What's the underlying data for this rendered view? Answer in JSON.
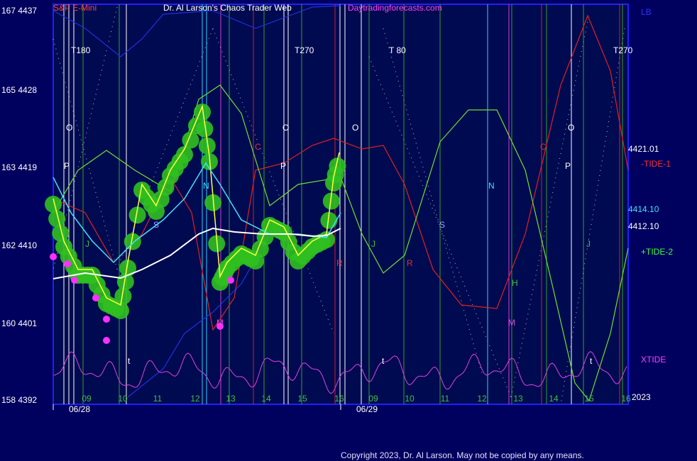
{
  "header": {
    "symbol": "S&P E-Mini",
    "title": "Dr. Al Larson's Chaos Trader Web",
    "site": "Daytradingforecasts.com",
    "corner": "LB"
  },
  "y_axis_labels": [
    "167 4437",
    "165 4428",
    "163 4419",
    "162 4410",
    "160 4401",
    "158 4392"
  ],
  "right_labels": [
    "4421.01",
    "-TIDE-1",
    "4414.10",
    "4412.10",
    "+TIDE-2",
    "XTIDE",
    "2023"
  ],
  "hour_labels": [
    "09",
    "10",
    "11",
    "12",
    "13",
    "14",
    "15",
    "16",
    "09",
    "10",
    "11",
    "12",
    "13",
    "14",
    "15",
    "16"
  ],
  "dates": [
    "06/28",
    "06/29"
  ],
  "markers": {
    "t": [
      "T180",
      "T270",
      "T 80",
      "T270"
    ],
    "o": [
      "O",
      "O",
      "O",
      "O"
    ],
    "p": [
      "P",
      "P",
      "P"
    ],
    "c": [
      "C",
      "C"
    ],
    "n": [
      "N",
      "N"
    ],
    "s": [
      "S",
      "S"
    ],
    "j": [
      "J",
      "J",
      "J"
    ],
    "r": [
      "R",
      "R"
    ],
    "h": [
      "H"
    ],
    "m": [
      "M",
      "M"
    ],
    "small_t": [
      "t",
      "t",
      "t"
    ]
  },
  "footer": {
    "copyright": "Copyright 2023, Dr. Al Larson. May not be copied by any means."
  }
}
